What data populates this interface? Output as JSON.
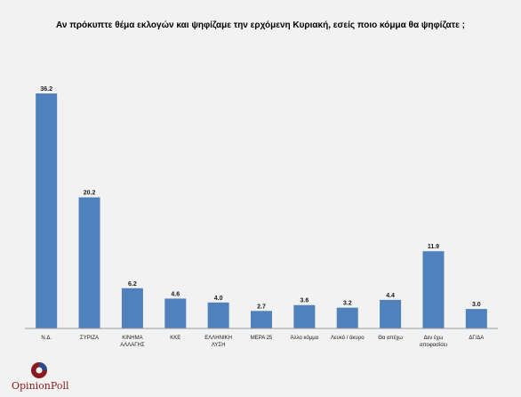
{
  "chart_data": {
    "type": "bar",
    "title": "Αν πρόκυπτε θέμα εκλογών και ψηφίζαμε την ερχόμενη Κυριακή, εσείς ποιο κόμμα θα ψηφίζατε ;",
    "categories": [
      "Ν.Δ.",
      "ΣΥΡΙΖΑ",
      "ΚΙΝΗΜΑ ΑΛΛΑΓΗΣ",
      "ΚΚΕ",
      "ΕΛΛΗΝΙΚΗ ΛΥΣΗ",
      "ΜΕΡΑ 25",
      "Άλλο κόμμα",
      "Λευκό / άκυρο",
      "Θα απέχω",
      "Δεν έχω αποφασίσει",
      "ΔΓ/ΔΑ"
    ],
    "category_lines": [
      [
        "Ν.Δ."
      ],
      [
        "ΣΥΡΙΖΑ"
      ],
      [
        "ΚΙΝΗΜΑ",
        "ΑΛΛΑΓΗΣ"
      ],
      [
        "ΚΚΕ"
      ],
      [
        "ΕΛΛΗΝΙΚΗ",
        "ΛΥΣΗ"
      ],
      [
        "ΜΕΡΑ 25"
      ],
      [
        "Άλλο κόμμα"
      ],
      [
        "Λευκό / άκυρο"
      ],
      [
        "Θα απέχω"
      ],
      [
        "Δεν έχω",
        "αποφασίσει"
      ],
      [
        "ΔΓ/ΔΑ"
      ]
    ],
    "values": [
      36.2,
      20.2,
      6.2,
      4.6,
      4.0,
      2.7,
      3.6,
      3.2,
      4.4,
      11.9,
      3.0
    ],
    "value_labels": [
      "36.2",
      "20.2",
      "6.2",
      "4.6",
      "4.0",
      "2.7",
      "3.6",
      "3.2",
      "4.4",
      "11.9",
      "3.0"
    ],
    "xlabel": "",
    "ylabel": "",
    "ylim": [
      0,
      36.2
    ],
    "grid": false,
    "bar_color": "#4f81bd"
  },
  "logo": {
    "text": "OpinionPoll",
    "color": "#8a1a1e"
  }
}
